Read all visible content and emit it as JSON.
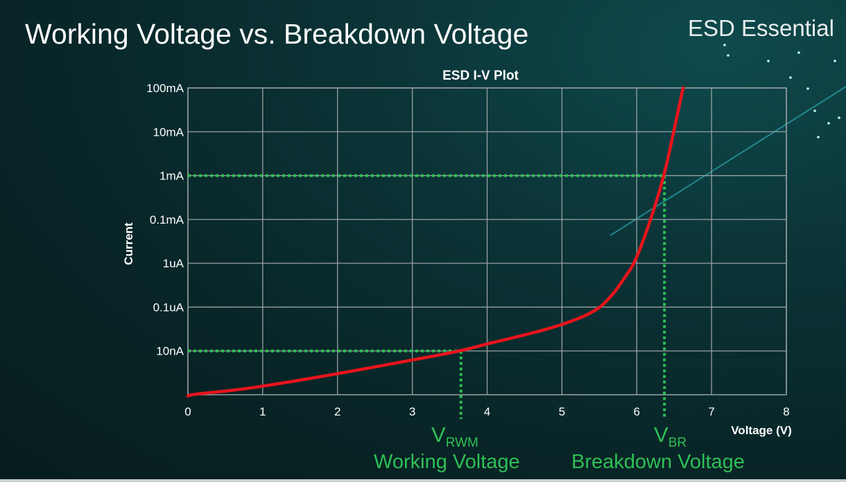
{
  "slide": {
    "title": "Working Voltage vs. Breakdown Voltage",
    "brand": "ESD Essential"
  },
  "annotations": {
    "vrwm_symbol": "V",
    "vrwm_sub": "RWM",
    "vrwm_label": "Working Voltage",
    "vbr_symbol": "V",
    "vbr_sub": "BR",
    "vbr_label": "Breakdown Voltage"
  },
  "chart_data": {
    "type": "line",
    "title": "ESD I-V Plot",
    "xlabel": "Voltage (V)",
    "ylabel": "Current",
    "xlim": [
      0,
      8
    ],
    "x_ticks": [
      "0",
      "1",
      "2",
      "3",
      "4",
      "5",
      "6",
      "7",
      "8"
    ],
    "y_scale": "log",
    "y_ticks": [
      {
        "label": "10nA",
        "value": 1e-08
      },
      {
        "label": "0.1uA",
        "value": 1e-07
      },
      {
        "label": "1uA",
        "value": 1e-06
      },
      {
        "label": "0.1mA",
        "value": 0.0001
      },
      {
        "label": "1mA",
        "value": 0.001
      },
      {
        "label": "10mA",
        "value": 0.01
      },
      {
        "label": "100mA",
        "value": 0.1
      }
    ],
    "grid": true,
    "series": [
      {
        "color": "#e8141c",
        "points": [
          [
            0.0,
            1e-09
          ],
          [
            0.5,
            1.2e-09
          ],
          [
            1.0,
            1.55e-09
          ],
          [
            2.0,
            3e-09
          ],
          [
            3.0,
            6.2e-09
          ],
          [
            3.65,
            1e-08
          ],
          [
            4.0,
            1.45e-08
          ],
          [
            4.5,
            2.3e-08
          ],
          [
            5.0,
            3.9e-08
          ],
          [
            5.46,
            8e-08
          ],
          [
            5.69,
            2e-07
          ],
          [
            5.85,
            5e-07
          ],
          [
            5.97,
            1e-06
          ],
          [
            6.15,
            4e-05
          ],
          [
            6.37,
            0.001
          ],
          [
            6.53,
            0.02
          ],
          [
            6.62,
            0.1
          ]
        ]
      }
    ],
    "reference_lines": [
      {
        "name": "VRWM",
        "voltage": 3.65,
        "current": 1e-08,
        "color": "#2fbf55"
      },
      {
        "name": "VBR",
        "voltage": 6.37,
        "current": 0.001,
        "color": "#2fbf55"
      }
    ]
  }
}
